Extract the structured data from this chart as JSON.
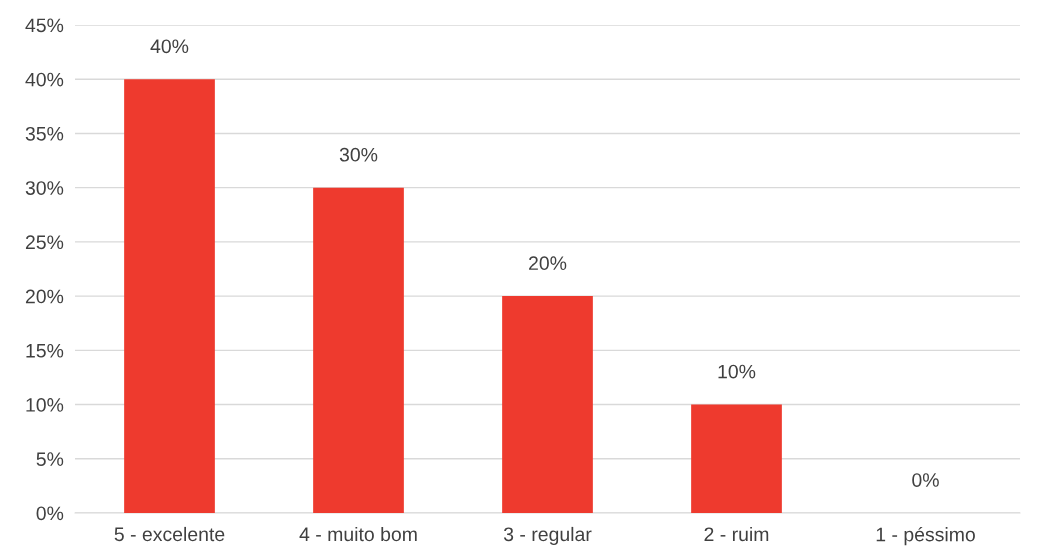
{
  "chart_data": {
    "type": "bar",
    "categories": [
      "5 - excelente",
      "4 - muito bom",
      "3 - regular",
      "2 - ruim",
      "1 - péssimo"
    ],
    "values": [
      40,
      30,
      20,
      10,
      0
    ],
    "value_labels": [
      "40%",
      "30%",
      "20%",
      "10%",
      "0%"
    ],
    "color": "#ee3a2e",
    "ylim": [
      0,
      45
    ],
    "yticks": [
      {
        "value": 0,
        "label": "0%"
      },
      {
        "value": 5,
        "label": "5%"
      },
      {
        "value": 10,
        "label": "10%"
      },
      {
        "value": 15,
        "label": "15%"
      },
      {
        "value": 20,
        "label": "20%"
      },
      {
        "value": 25,
        "label": "25%"
      },
      {
        "value": 30,
        "label": "30%"
      },
      {
        "value": 35,
        "label": "35%"
      },
      {
        "value": 40,
        "label": "40%"
      },
      {
        "value": 45,
        "label": "45%"
      }
    ],
    "grid": "y",
    "legend": false
  }
}
